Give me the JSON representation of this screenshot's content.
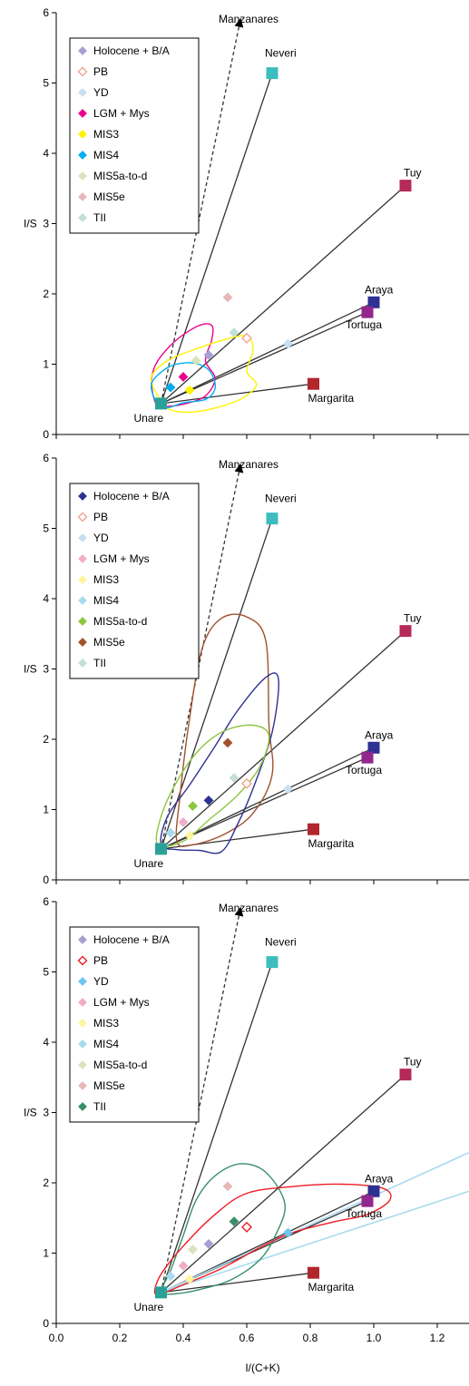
{
  "chart_data": {
    "type": "scatter",
    "shared_x_axis_label": "I/(C+K)",
    "x_ticks": [
      "0.0",
      "0.2",
      "0.4",
      "0.6",
      "0.8",
      "1.0",
      "1.2"
    ],
    "xlim": [
      0,
      1.3
    ],
    "ylim": [
      0,
      6
    ],
    "y_ticks": [
      "0",
      "1",
      "2",
      "3",
      "4",
      "5",
      "6"
    ],
    "ylabel": "I/S",
    "grid": false,
    "legend_placement": "top-left",
    "sources": [
      {
        "name": "Manzanares",
        "x": 0.58,
        "y": 5.9,
        "color": "#000000",
        "marker": "none"
      },
      {
        "name": "Neveri",
        "x": 0.68,
        "y": 5.14,
        "color": "#3dbdbd",
        "marker": "square"
      },
      {
        "name": "Tuy",
        "x": 1.1,
        "y": 3.54,
        "color": "#b52a5a",
        "marker": "square"
      },
      {
        "name": "Araya",
        "x": 1.0,
        "y": 1.88,
        "color": "#2e3192",
        "marker": "square"
      },
      {
        "name": "Tortuga",
        "x": 0.98,
        "y": 1.74,
        "color": "#92278f",
        "marker": "square"
      },
      {
        "name": "Margarita",
        "x": 0.81,
        "y": 0.72,
        "color": "#b2272d",
        "marker": "square"
      },
      {
        "name": "Unare",
        "x": 0.33,
        "y": 0.44,
        "color": "#2aa198",
        "marker": "square"
      }
    ],
    "panels": [
      {
        "legend": [
          {
            "label": "Holocene + B/A",
            "color": "#a99fd4",
            "marker": "diamond"
          },
          {
            "label": "PB",
            "color": "#f2a58e",
            "marker": "diamond-open"
          },
          {
            "label": "YD",
            "color": "#c7dff0",
            "marker": "diamond"
          },
          {
            "label": "LGM + Mys",
            "color": "#ec008c",
            "marker": "diamond"
          },
          {
            "label": "MIS3",
            "color": "#fff200",
            "marker": "diamond"
          },
          {
            "label": "MIS4",
            "color": "#00aeef",
            "marker": "diamond"
          },
          {
            "label": "MIS5a-to-d",
            "color": "#d7e4bd",
            "marker": "diamond"
          },
          {
            "label": "MIS5e",
            "color": "#e6b9b8",
            "marker": "diamond"
          },
          {
            "label": "TII",
            "color": "#c4dfd4",
            "marker": "diamond"
          }
        ],
        "points": [
          {
            "series": "Holocene + B/A",
            "x": 0.48,
            "y": 1.13
          },
          {
            "series": "PB",
            "x": 0.6,
            "y": 1.37
          },
          {
            "series": "YD",
            "x": 0.73,
            "y": 1.29
          },
          {
            "series": "LGM + Mys",
            "x": 0.4,
            "y": 0.82
          },
          {
            "series": "MIS3",
            "x": 0.42,
            "y": 0.63
          },
          {
            "series": "MIS4",
            "x": 0.36,
            "y": 0.67
          },
          {
            "series": "MIS5a-to-d",
            "x": 0.44,
            "y": 1.05
          },
          {
            "series": "MIS5e",
            "x": 0.54,
            "y": 1.95
          },
          {
            "series": "TII",
            "x": 0.56,
            "y": 1.45
          }
        ],
        "envelopes": [
          {
            "color": "#ec008c",
            "points": [
              [
                0.31,
                0.48
              ],
              [
                0.3,
                0.78
              ],
              [
                0.32,
                1.05
              ],
              [
                0.38,
                1.35
              ],
              [
                0.45,
                1.55
              ],
              [
                0.49,
                1.55
              ],
              [
                0.49,
                1.35
              ],
              [
                0.47,
                1.05
              ],
              [
                0.5,
                0.8
              ],
              [
                0.47,
                0.55
              ],
              [
                0.4,
                0.43
              ],
              [
                0.33,
                0.4
              ]
            ]
          },
          {
            "color": "#fff200",
            "points": [
              [
                0.32,
                0.55
              ],
              [
                0.3,
                0.82
              ],
              [
                0.35,
                1.05
              ],
              [
                0.43,
                1.2
              ],
              [
                0.53,
                1.35
              ],
              [
                0.6,
                1.4
              ],
              [
                0.62,
                1.2
              ],
              [
                0.6,
                0.9
              ],
              [
                0.63,
                0.7
              ],
              [
                0.57,
                0.48
              ],
              [
                0.45,
                0.33
              ],
              [
                0.36,
                0.35
              ]
            ]
          },
          {
            "color": "#00aeef",
            "points": [
              [
                0.32,
                0.42
              ],
              [
                0.3,
                0.72
              ],
              [
                0.35,
                0.95
              ],
              [
                0.41,
                1.02
              ],
              [
                0.46,
                0.98
              ],
              [
                0.49,
                0.86
              ],
              [
                0.5,
                0.65
              ],
              [
                0.47,
                0.5
              ],
              [
                0.4,
                0.45
              ],
              [
                0.35,
                0.38
              ]
            ]
          }
        ]
      },
      {
        "legend": [
          {
            "label": "Holocene + B/A",
            "color": "#2e3192",
            "marker": "diamond"
          },
          {
            "label": "PB",
            "color": "#f2a58e",
            "marker": "diamond-open"
          },
          {
            "label": "YD",
            "color": "#c7dff0",
            "marker": "diamond"
          },
          {
            "label": "LGM + Mys",
            "color": "#f0aec6",
            "marker": "diamond"
          },
          {
            "label": "MIS3",
            "color": "#fff59d",
            "marker": "diamond"
          },
          {
            "label": "MIS4",
            "color": "#a8dbef",
            "marker": "diamond"
          },
          {
            "label": "MIS5a-to-d",
            "color": "#8dc63f",
            "marker": "diamond"
          },
          {
            "label": "MIS5e",
            "color": "#a0522d",
            "marker": "diamond"
          },
          {
            "label": "TII",
            "color": "#c4dfd4",
            "marker": "diamond"
          }
        ],
        "points": [
          {
            "series": "Holocene + B/A",
            "x": 0.48,
            "y": 1.13
          },
          {
            "series": "PB",
            "x": 0.6,
            "y": 1.37
          },
          {
            "series": "YD",
            "x": 0.73,
            "y": 1.29
          },
          {
            "series": "LGM + Mys",
            "x": 0.4,
            "y": 0.82
          },
          {
            "series": "MIS3",
            "x": 0.42,
            "y": 0.63
          },
          {
            "series": "MIS4",
            "x": 0.36,
            "y": 0.67
          },
          {
            "series": "MIS5a-to-d",
            "x": 0.43,
            "y": 1.05
          },
          {
            "series": "MIS5e",
            "x": 0.54,
            "y": 1.95
          },
          {
            "series": "TII",
            "x": 0.56,
            "y": 1.45
          }
        ],
        "envelopes": [
          {
            "color": "#a0522d",
            "points": [
              [
                0.38,
                0.55
              ],
              [
                0.39,
                1.2
              ],
              [
                0.42,
                2.3
              ],
              [
                0.46,
                3.3
              ],
              [
                0.52,
                3.72
              ],
              [
                0.6,
                3.74
              ],
              [
                0.66,
                3.4
              ],
              [
                0.67,
                2.2
              ],
              [
                0.68,
                1.5
              ],
              [
                0.62,
                0.95
              ],
              [
                0.53,
                0.65
              ],
              [
                0.43,
                0.5
              ]
            ]
          },
          {
            "color": "#2e3192",
            "points": [
              [
                0.33,
                0.5
              ],
              [
                0.35,
                0.9
              ],
              [
                0.42,
                1.35
              ],
              [
                0.5,
                1.9
              ],
              [
                0.57,
                2.4
              ],
              [
                0.66,
                2.88
              ],
              [
                0.7,
                2.85
              ],
              [
                0.68,
                2.1
              ],
              [
                0.62,
                1.3
              ],
              [
                0.57,
                0.78
              ],
              [
                0.52,
                0.4
              ],
              [
                0.45,
                0.42
              ],
              [
                0.38,
                0.43
              ]
            ]
          },
          {
            "color": "#8dc63f",
            "points": [
              [
                0.32,
                0.5
              ],
              [
                0.33,
                0.9
              ],
              [
                0.38,
                1.4
              ],
              [
                0.45,
                1.85
              ],
              [
                0.53,
                2.12
              ],
              [
                0.62,
                2.2
              ],
              [
                0.67,
                2.05
              ],
              [
                0.64,
                1.6
              ],
              [
                0.57,
                1.2
              ],
              [
                0.48,
                0.85
              ],
              [
                0.4,
                0.55
              ]
            ]
          }
        ]
      },
      {
        "legend": [
          {
            "label": "Holocene + B/A",
            "color": "#a99fd4",
            "marker": "diamond"
          },
          {
            "label": "PB",
            "color": "#ed1c24",
            "marker": "diamond-open"
          },
          {
            "label": "YD",
            "color": "#6ec6f0",
            "marker": "diamond"
          },
          {
            "label": "LGM + Mys",
            "color": "#f0aec6",
            "marker": "diamond"
          },
          {
            "label": "MIS3",
            "color": "#fff59d",
            "marker": "diamond"
          },
          {
            "label": "MIS4",
            "color": "#a8dbef",
            "marker": "diamond"
          },
          {
            "label": "MIS5a-to-d",
            "color": "#d7e4bd",
            "marker": "diamond"
          },
          {
            "label": "MIS5e",
            "color": "#e6b9b8",
            "marker": "diamond"
          },
          {
            "label": "TII",
            "color": "#3a8f6b",
            "marker": "diamond"
          }
        ],
        "points": [
          {
            "series": "Holocene + B/A",
            "x": 0.48,
            "y": 1.13
          },
          {
            "series": "PB",
            "x": 0.6,
            "y": 1.37
          },
          {
            "series": "YD",
            "x": 0.73,
            "y": 1.29
          },
          {
            "series": "LGM + Mys",
            "x": 0.4,
            "y": 0.82
          },
          {
            "series": "MIS3",
            "x": 0.42,
            "y": 0.63
          },
          {
            "series": "MIS4",
            "x": 0.36,
            "y": 0.67
          },
          {
            "series": "MIS5a-to-d",
            "x": 0.43,
            "y": 1.05
          },
          {
            "series": "MIS5e",
            "x": 0.54,
            "y": 1.95
          },
          {
            "series": "TII",
            "x": 0.56,
            "y": 1.45
          }
        ],
        "lines": [
          {
            "color": "#a8dbef",
            "from": [
              0.33,
              0.44
            ],
            "to": [
              1.3,
              2.43
            ]
          },
          {
            "color": "#a8dbef",
            "from": [
              0.33,
              0.44
            ],
            "to": [
              1.3,
              1.88
            ]
          }
        ],
        "envelopes": [
          {
            "color": "#3a8f6b",
            "points": [
              [
                0.33,
                0.45
              ],
              [
                0.36,
                0.75
              ],
              [
                0.4,
                1.25
              ],
              [
                0.44,
                1.75
              ],
              [
                0.5,
                2.1
              ],
              [
                0.58,
                2.27
              ],
              [
                0.66,
                2.15
              ],
              [
                0.72,
                1.7
              ],
              [
                0.69,
                1.25
              ],
              [
                0.64,
                0.9
              ],
              [
                0.55,
                0.62
              ],
              [
                0.45,
                0.48
              ],
              [
                0.37,
                0.42
              ]
            ]
          },
          {
            "color": "#ed1c24",
            "points": [
              [
                0.31,
                0.45
              ],
              [
                0.33,
                0.7
              ],
              [
                0.4,
                1.1
              ],
              [
                0.5,
                1.55
              ],
              [
                0.6,
                1.85
              ],
              [
                0.75,
                1.95
              ],
              [
                0.9,
                1.98
              ],
              [
                1.03,
                1.92
              ],
              [
                1.05,
                1.75
              ],
              [
                0.98,
                1.55
              ],
              [
                0.88,
                1.45
              ],
              [
                0.75,
                1.3
              ],
              [
                0.65,
                1.1
              ],
              [
                0.52,
                0.78
              ],
              [
                0.4,
                0.55
              ],
              [
                0.33,
                0.42
              ]
            ]
          }
        ]
      }
    ]
  }
}
